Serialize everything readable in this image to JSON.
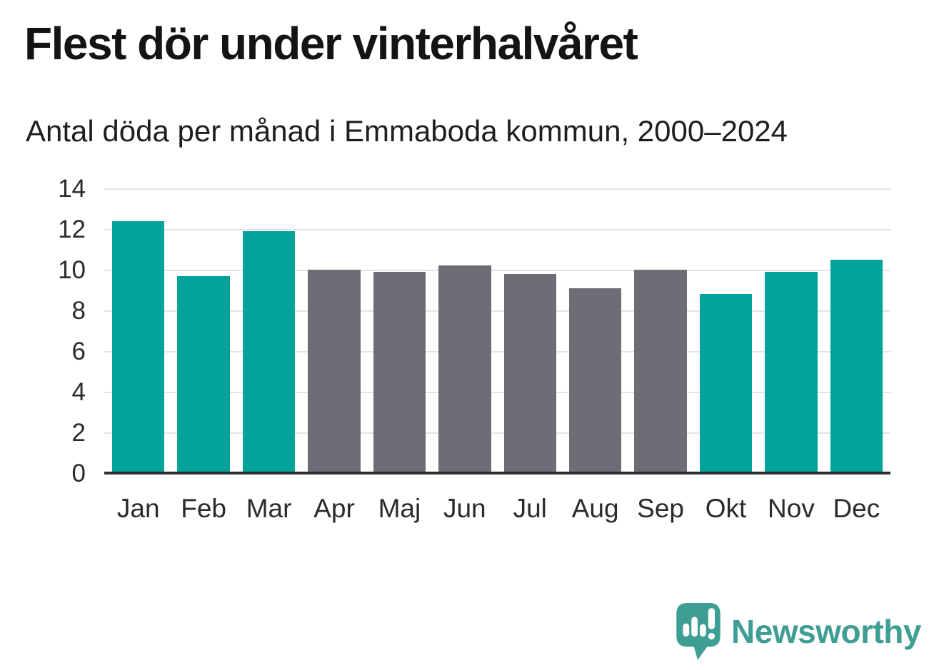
{
  "header": {
    "title": "Flest dör under vinterhalvåret",
    "subtitle": "Antal döda per månad i Emmaboda kommun, 2000–2024"
  },
  "chart_data": {
    "type": "bar",
    "title": "Flest dör under vinterhalvåret",
    "subtitle": "Antal döda per månad i Emmaboda kommun, 2000–2024",
    "categories": [
      "Jan",
      "Feb",
      "Mar",
      "Apr",
      "Maj",
      "Jun",
      "Jul",
      "Aug",
      "Sep",
      "Okt",
      "Nov",
      "Dec"
    ],
    "values": [
      12.4,
      9.7,
      11.9,
      10.0,
      9.9,
      10.2,
      9.8,
      9.1,
      10.0,
      8.8,
      9.9,
      10.5
    ],
    "bar_color_groups": [
      "winter",
      "winter",
      "winter",
      "summer",
      "summer",
      "summer",
      "summer",
      "summer",
      "summer",
      "winter",
      "winter",
      "winter"
    ],
    "palette": {
      "winter": "#00a29a",
      "summer": "#6e6d75"
    },
    "xlabel": "",
    "ylabel": "",
    "ylim": [
      0,
      14
    ],
    "yticks": [
      0,
      2,
      4,
      6,
      8,
      10,
      12,
      14
    ],
    "grid": "horizontal",
    "legend": "none",
    "gridline_color": "#e4e4e4",
    "axis_line_color": "#2e2e2e"
  },
  "footer": {
    "brand": "Newsworthy",
    "brand_color": "#3f9e94",
    "logo_icon": "speech-bubble-bar-chart-icon"
  }
}
